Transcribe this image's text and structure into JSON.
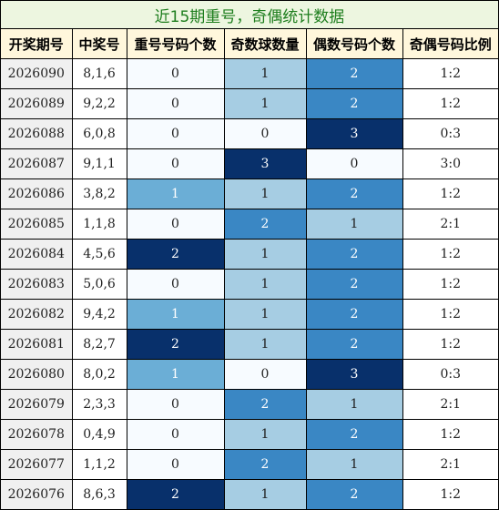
{
  "title": "近15期重号，奇偶统计数据",
  "columns": [
    "开奖期号",
    "中奖号",
    "重号号码个数",
    "奇数球数量",
    "偶数号码个数",
    "奇偶号码比例"
  ],
  "rows": [
    {
      "period": "2026090",
      "draw": "8,1,6",
      "repeat": "0",
      "odd": "1",
      "even": "2",
      "ratio": "1:2"
    },
    {
      "period": "2026089",
      "draw": "9,2,2",
      "repeat": "0",
      "odd": "1",
      "even": "2",
      "ratio": "1:2"
    },
    {
      "period": "2026088",
      "draw": "6,0,8",
      "repeat": "0",
      "odd": "0",
      "even": "3",
      "ratio": "0:3"
    },
    {
      "period": "2026087",
      "draw": "9,1,1",
      "repeat": "0",
      "odd": "3",
      "even": "0",
      "ratio": "3:0"
    },
    {
      "period": "2026086",
      "draw": "3,8,2",
      "repeat": "1",
      "odd": "1",
      "even": "2",
      "ratio": "1:2"
    },
    {
      "period": "2026085",
      "draw": "1,1,8",
      "repeat": "0",
      "odd": "2",
      "even": "1",
      "ratio": "2:1"
    },
    {
      "period": "2026084",
      "draw": "4,5,6",
      "repeat": "2",
      "odd": "1",
      "even": "2",
      "ratio": "1:2"
    },
    {
      "period": "2026083",
      "draw": "5,0,6",
      "repeat": "0",
      "odd": "1",
      "even": "2",
      "ratio": "1:2"
    },
    {
      "period": "2026082",
      "draw": "9,4,2",
      "repeat": "1",
      "odd": "1",
      "even": "2",
      "ratio": "1:2"
    },
    {
      "period": "2026081",
      "draw": "8,2,7",
      "repeat": "2",
      "odd": "1",
      "even": "2",
      "ratio": "1:2"
    },
    {
      "period": "2026080",
      "draw": "8,0,2",
      "repeat": "1",
      "odd": "0",
      "even": "3",
      "ratio": "0:3"
    },
    {
      "period": "2026079",
      "draw": "2,3,3",
      "repeat": "0",
      "odd": "2",
      "even": "1",
      "ratio": "2:1"
    },
    {
      "period": "2026078",
      "draw": "0,4,9",
      "repeat": "0",
      "odd": "1",
      "even": "2",
      "ratio": "1:2"
    },
    {
      "period": "2026077",
      "draw": "1,1,2",
      "repeat": "0",
      "odd": "2",
      "even": "1",
      "ratio": "2:1"
    },
    {
      "period": "2026076",
      "draw": "8,6,3",
      "repeat": "2",
      "odd": "1",
      "even": "2",
      "ratio": "1:2"
    }
  ],
  "heat_colors": {
    "0": {
      "bg": "#f7fbff",
      "fg": "#222222"
    },
    "1": {
      "bg": "#6baed6",
      "fg": "#ffffff"
    },
    "2": {
      "bg": "#08306b",
      "fg": "#ffffff"
    }
  },
  "odd_colors": {
    "0": {
      "bg": "#f7fbff",
      "fg": "#222222"
    },
    "1": {
      "bg": "#a6cde3",
      "fg": "#222222"
    },
    "2": {
      "bg": "#3a87c4",
      "fg": "#ffffff"
    },
    "3": {
      "bg": "#08306b",
      "fg": "#ffffff"
    }
  },
  "even_colors": {
    "0": {
      "bg": "#f7fbff",
      "fg": "#222222"
    },
    "1": {
      "bg": "#a6cde3",
      "fg": "#222222"
    },
    "2": {
      "bg": "#3a87c4",
      "fg": "#ffffff"
    },
    "3": {
      "bg": "#08306b",
      "fg": "#ffffff"
    }
  }
}
